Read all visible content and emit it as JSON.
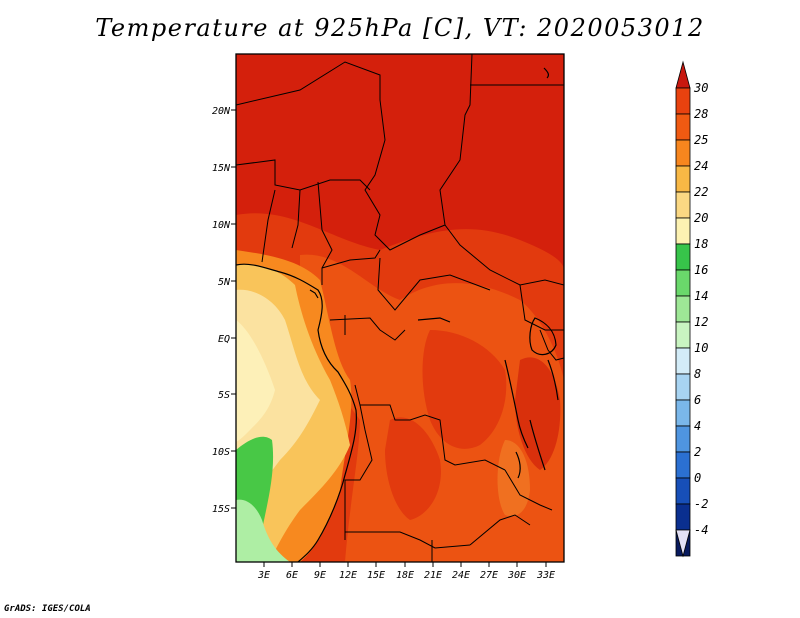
{
  "title": "Temperature at 925hPa [C], VT: 2020053012",
  "footer": "GrADS: IGES/COLA",
  "map": {
    "lat_labels": [
      "20N",
      "15N",
      "10N",
      "5N",
      "EQ",
      "5S",
      "10S",
      "15S"
    ],
    "lon_labels": [
      "3E",
      "6E",
      "9E",
      "12E",
      "15E",
      "18E",
      "21E",
      "24E",
      "27E",
      "30E",
      "33E"
    ]
  },
  "colorbar": {
    "labels": [
      "30",
      "28",
      "25",
      "24",
      "22",
      "20",
      "18",
      "16",
      "14",
      "12",
      "10",
      "8",
      "6",
      "4",
      "2",
      "0",
      "-2",
      "-4"
    ],
    "colors": [
      "#d92b12",
      "#e8420f",
      "#f05a12",
      "#f7861e",
      "#f8b845",
      "#fbd883",
      "#fdf2b2",
      "#37c44a",
      "#6ad86b",
      "#9ee796",
      "#c9f4c1",
      "#d3ecf8",
      "#a8d4f2",
      "#7ab7ea",
      "#4f95e0",
      "#2b70d2",
      "#174fb8",
      "#0a2f8f",
      "#081a5e",
      "#e2e0f5"
    ]
  },
  "colors": {
    "hot": "#d11c0c",
    "warm": "#e23a0e",
    "orange": "#f26413",
    "light_orange": "#f9a02e",
    "yellow": "#fbd57a",
    "pale": "#fdf0b0",
    "green": "#48c846",
    "light_green": "#aeeea4"
  }
}
